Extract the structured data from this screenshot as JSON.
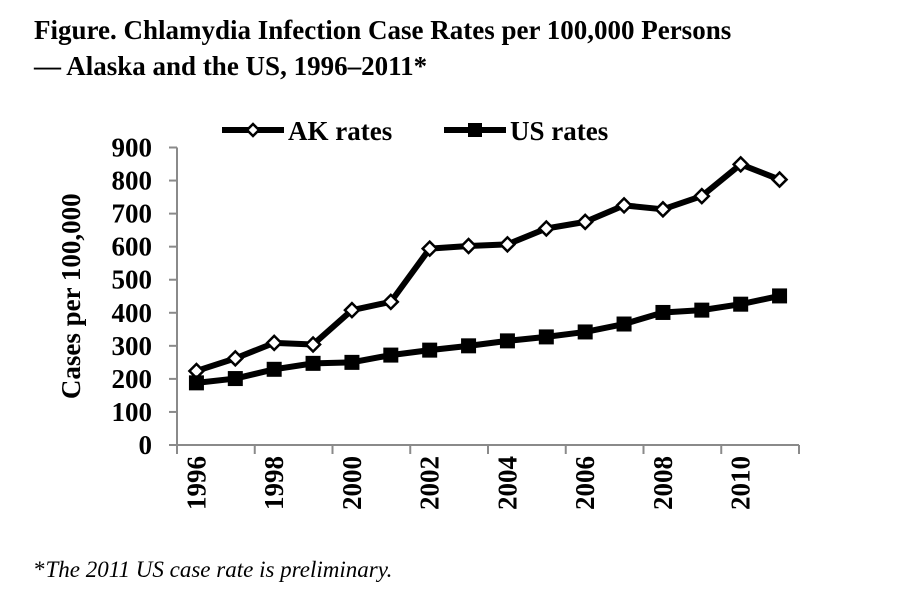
{
  "title": {
    "line1": "Figure. Chlamydia Infection Case Rates per 100,000 Persons",
    "line2": "— Alaska and the US, 1996–2011*"
  },
  "footnote": {
    "star": "*",
    "text": "The 2011 US case rate is preliminary."
  },
  "chart_data": {
    "type": "line",
    "title": "Chlamydia Infection Case Rates per 100,000 Persons — Alaska and the US, 1996–2011*",
    "xlabel": "",
    "ylabel": "Cases per 100,000",
    "x": [
      1996,
      1997,
      1998,
      1999,
      2000,
      2001,
      2002,
      2003,
      2004,
      2005,
      2006,
      2007,
      2008,
      2009,
      2010,
      2011
    ],
    "x_tick_labels": [
      "1996",
      "1998",
      "2000",
      "2002",
      "2004",
      "2006",
      "2008",
      "2010"
    ],
    "y_ticks": [
      0,
      100,
      200,
      300,
      400,
      500,
      600,
      700,
      800,
      900
    ],
    "ylim": [
      0,
      900
    ],
    "grid": false,
    "legend": {
      "position": "top",
      "entries": [
        "AK rates",
        "US rates"
      ]
    },
    "series": [
      {
        "name": "AK rates",
        "marker": "hollow-diamond",
        "color": "#000000",
        "values": [
          224,
          262,
          309,
          304,
          408,
          433,
          594,
          602,
          607,
          655,
          675,
          725,
          713,
          753,
          849,
          803
        ]
      },
      {
        "name": "US rates",
        "marker": "filled-square",
        "color": "#000000",
        "values": [
          188,
          201,
          229,
          247,
          250,
          272,
          287,
          300,
          315,
          327,
          342,
          366,
          401,
          408,
          426,
          451
        ]
      }
    ]
  }
}
